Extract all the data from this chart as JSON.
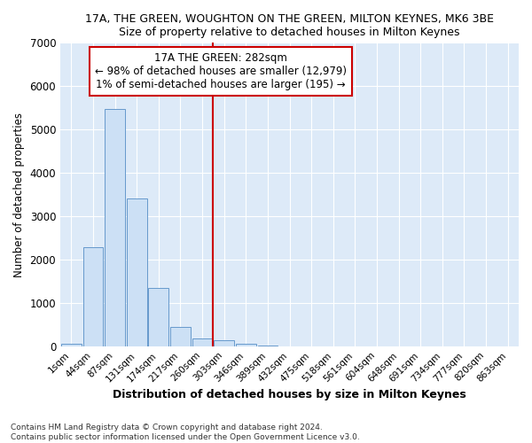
{
  "title": "17A, THE GREEN, WOUGHTON ON THE GREEN, MILTON KEYNES, MK6 3BE",
  "subtitle": "Size of property relative to detached houses in Milton Keynes",
  "xlabel": "Distribution of detached houses by size in Milton Keynes",
  "ylabel": "Number of detached properties",
  "footnote1": "Contains HM Land Registry data © Crown copyright and database right 2024.",
  "footnote2": "Contains public sector information licensed under the Open Government Licence v3.0.",
  "annotation_title": "17A THE GREEN: 282sqm",
  "annotation_line1": "← 98% of detached houses are smaller (12,979)",
  "annotation_line2": "1% of semi-detached houses are larger (195) →",
  "bar_color": "#cce0f5",
  "bar_edge_color": "#6699cc",
  "vline_color": "#cc0000",
  "vline_x": 6.5,
  "annotation_box_edgecolor": "#cc0000",
  "fig_background_color": "#ffffff",
  "plot_background_color": "#ddeaf8",
  "grid_color": "#ffffff",
  "categories": [
    "1sqm",
    "44sqm",
    "87sqm",
    "131sqm",
    "174sqm",
    "217sqm",
    "260sqm",
    "303sqm",
    "346sqm",
    "389sqm",
    "432sqm",
    "475sqm",
    "518sqm",
    "561sqm",
    "604sqm",
    "648sqm",
    "691sqm",
    "734sqm",
    "777sqm",
    "820sqm",
    "863sqm"
  ],
  "values": [
    55,
    2280,
    5470,
    3400,
    1340,
    440,
    175,
    130,
    55,
    10,
    3,
    1,
    0,
    0,
    0,
    0,
    0,
    0,
    0,
    0,
    0
  ],
  "ylim": [
    0,
    7000
  ],
  "yticks": [
    0,
    1000,
    2000,
    3000,
    4000,
    5000,
    6000,
    7000
  ]
}
